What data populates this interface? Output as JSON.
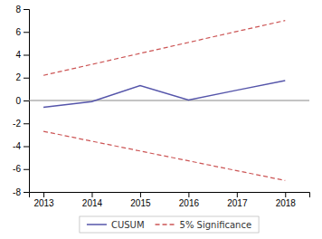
{
  "chart_data": {
    "type": "line",
    "series": [
      {
        "name": "CUSUM",
        "color": "#5555aa",
        "line_style": "solid",
        "x": [
          2013,
          2014,
          2015,
          2016,
          2017,
          2018
        ],
        "values": [
          -0.6,
          -0.1,
          1.3,
          0.05,
          0.9,
          1.75
        ]
      },
      {
        "name": "5% Significance",
        "color": "#cc5555",
        "line_style": "dashed",
        "x": [
          2013,
          2018
        ],
        "values": [
          2.2,
          7.0
        ]
      },
      {
        "name": "5% Significance",
        "color": "#cc5555",
        "line_style": "dashed",
        "x": [
          2013,
          2018
        ],
        "values": [
          -2.7,
          -7.0
        ]
      }
    ],
    "hline": {
      "y": 0,
      "color": "#888888"
    },
    "xlim": [
      2012.7,
      2018.5
    ],
    "xticks": [
      2013,
      2014,
      2015,
      2016,
      2017,
      2018
    ],
    "ylim": [
      -8,
      8
    ],
    "yticks": [
      -8,
      -6,
      -4,
      -2,
      0,
      2,
      4,
      6,
      8
    ],
    "grid": false,
    "legend": "bottom"
  }
}
